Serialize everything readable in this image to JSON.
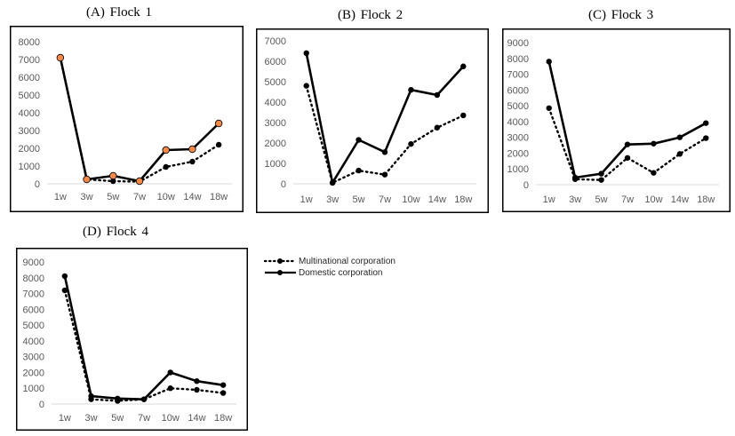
{
  "legend": {
    "multinational": "Multinational corporation",
    "domestic": "Domestic corporation"
  },
  "colors": {
    "line": "#000000",
    "orange_marker": "#F4894A",
    "axis_text": "#595959",
    "frame": "#000000"
  },
  "chart_data": [
    {
      "type": "line",
      "title": "(A)  Flock  1",
      "categories": [
        "1w",
        "3w",
        "5w",
        "7w",
        "10w",
        "14w",
        "18w"
      ],
      "ylim": [
        0,
        8000
      ],
      "yticks": [
        "0",
        "1000",
        "2000",
        "3000",
        "4000",
        "5000",
        "6000",
        "7000",
        "8000"
      ],
      "grid": false,
      "domestic_marker": "orange",
      "series": [
        {
          "name": "Multinational corporation",
          "style": "dotted",
          "values": [
            7100,
            250,
            150,
            120,
            950,
            1250,
            2200
          ]
        },
        {
          "name": "Domestic corporation",
          "style": "solid",
          "values": [
            7100,
            250,
            450,
            150,
            1900,
            1950,
            3400
          ]
        }
      ]
    },
    {
      "type": "line",
      "title": "(B)  Flock  2",
      "categories": [
        "1w",
        "3w",
        "5w",
        "7w",
        "10w",
        "14w",
        "18w"
      ],
      "ylim": [
        0,
        7000
      ],
      "yticks": [
        "0",
        "1000",
        "2000",
        "3000",
        "4000",
        "5000",
        "6000",
        "7000"
      ],
      "grid": false,
      "domestic_marker": "black",
      "series": [
        {
          "name": "Multinational corporation",
          "style": "dotted",
          "values": [
            4800,
            50,
            650,
            450,
            1950,
            2750,
            3350
          ]
        },
        {
          "name": "Domestic corporation",
          "style": "solid",
          "values": [
            6400,
            50,
            2150,
            1550,
            4600,
            4350,
            5750
          ]
        }
      ]
    },
    {
      "type": "line",
      "title": "(C)  Flock  3",
      "categories": [
        "1w",
        "3w",
        "5w",
        "7w",
        "10w",
        "14w",
        "18w"
      ],
      "ylim": [
        0,
        9000
      ],
      "yticks": [
        "0",
        "1000",
        "2000",
        "3000",
        "4000",
        "5000",
        "6000",
        "7000",
        "8000",
        "9000"
      ],
      "grid": false,
      "domestic_marker": "black",
      "series": [
        {
          "name": "Multinational corporation",
          "style": "dotted",
          "values": [
            4850,
            350,
            300,
            1700,
            750,
            1950,
            2950
          ]
        },
        {
          "name": "Domestic corporation",
          "style": "solid",
          "values": [
            7800,
            450,
            700,
            2550,
            2600,
            3000,
            3900
          ]
        }
      ]
    },
    {
      "type": "line",
      "title": "(D)  Flock  4",
      "categories": [
        "1w",
        "3w",
        "5w",
        "7w",
        "10w",
        "14w",
        "18w"
      ],
      "ylim": [
        0,
        9000
      ],
      "yticks": [
        "0",
        "1000",
        "2000",
        "3000",
        "4000",
        "5000",
        "6000",
        "7000",
        "8000",
        "9000"
      ],
      "grid": false,
      "domestic_marker": "black",
      "series": [
        {
          "name": "Multinational corporation",
          "style": "dotted",
          "values": [
            7200,
            300,
            200,
            300,
            1000,
            900,
            700
          ]
        },
        {
          "name": "Domestic corporation",
          "style": "solid",
          "values": [
            8100,
            500,
            350,
            300,
            2000,
            1450,
            1200
          ]
        }
      ]
    }
  ]
}
